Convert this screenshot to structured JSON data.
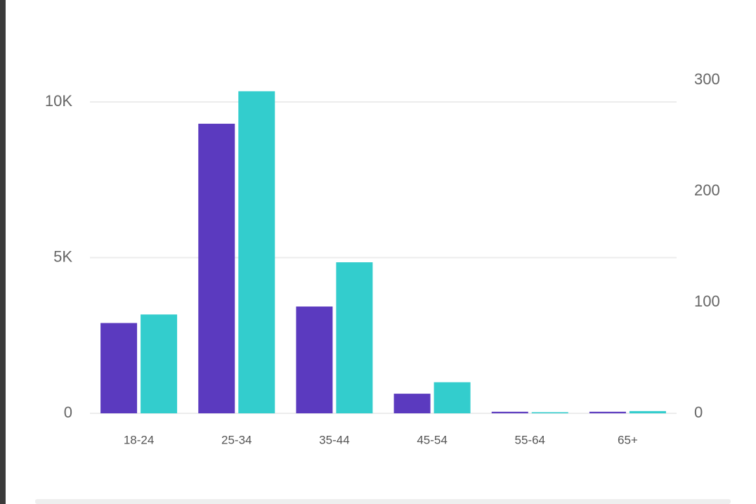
{
  "chart_data": {
    "type": "bar",
    "categories": [
      "18-24",
      "25-34",
      "35-44",
      "45-54",
      "55-64",
      "65+"
    ],
    "series": [
      {
        "color": "#5b3abf",
        "values": [
          2900,
          9300,
          3430,
          630,
          50,
          50
        ]
      },
      {
        "color": "#33cdcd",
        "axis": "y2",
        "values": [
          89,
          290,
          136,
          28,
          1,
          2
        ]
      }
    ],
    "ylim": [
      0,
      10700
    ],
    "yticks": [
      {
        "value": 0,
        "label": "0"
      },
      {
        "value": 5000,
        "label": "5K"
      },
      {
        "value": 10000,
        "label": "10K"
      }
    ],
    "y2lim": [
      0,
      300
    ],
    "y2ticks": [
      0,
      100,
      200,
      300
    ],
    "grid": true
  }
}
